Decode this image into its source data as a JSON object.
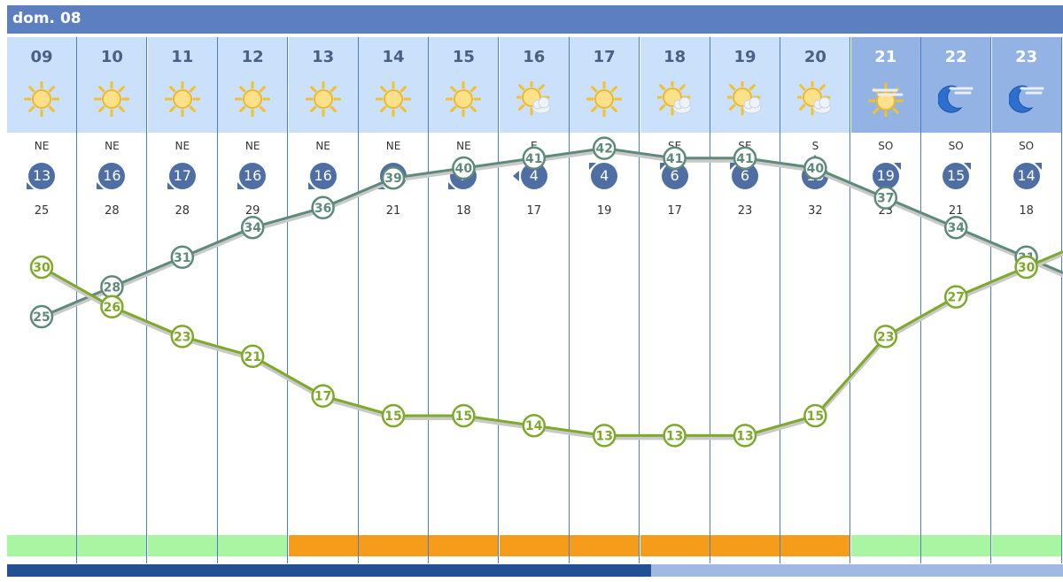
{
  "header": {
    "day_label": "dom. 08"
  },
  "hours": [
    {
      "hour": "09",
      "icon": "sun-icon",
      "night": false,
      "wind_dir": "NE",
      "wind_speed": "13",
      "gust": "25",
      "arrow": "bl",
      "level": "ok"
    },
    {
      "hour": "10",
      "icon": "sun-icon",
      "night": false,
      "wind_dir": "NE",
      "wind_speed": "16",
      "gust": "28",
      "arrow": "bl",
      "level": "ok"
    },
    {
      "hour": "11",
      "icon": "sun-icon",
      "night": false,
      "wind_dir": "NE",
      "wind_speed": "17",
      "gust": "28",
      "arrow": "bl",
      "level": "ok"
    },
    {
      "hour": "12",
      "icon": "sun-icon",
      "night": false,
      "wind_dir": "NE",
      "wind_speed": "16",
      "gust": "29",
      "arrow": "bl",
      "level": "ok"
    },
    {
      "hour": "13",
      "icon": "sun-icon",
      "night": false,
      "wind_dir": "NE",
      "wind_speed": "16",
      "gust": "25",
      "arrow": "bl",
      "level": "warn"
    },
    {
      "hour": "14",
      "icon": "sun-icon",
      "night": false,
      "wind_dir": "NE",
      "wind_speed": "11",
      "gust": "21",
      "arrow": "bl",
      "level": "warn"
    },
    {
      "hour": "15",
      "icon": "sun-icon",
      "night": false,
      "wind_dir": "NE",
      "wind_speed": "7",
      "gust": "18",
      "arrow": "bl",
      "level": "warn"
    },
    {
      "hour": "16",
      "icon": "sun-cloud-icon",
      "night": false,
      "wind_dir": "E",
      "wind_speed": "4",
      "gust": "17",
      "arrow": "l",
      "level": "warn"
    },
    {
      "hour": "17",
      "icon": "sun-icon",
      "night": false,
      "wind_dir": "SE",
      "wind_speed": "4",
      "gust": "19",
      "arrow": "tl",
      "level": "warn"
    },
    {
      "hour": "18",
      "icon": "sun-cloud-icon",
      "night": false,
      "wind_dir": "SE",
      "wind_speed": "6",
      "gust": "17",
      "arrow": "tl",
      "level": "warn"
    },
    {
      "hour": "19",
      "icon": "sun-cloud-icon",
      "night": false,
      "wind_dir": "SE",
      "wind_speed": "6",
      "gust": "23",
      "arrow": "tl",
      "level": "warn"
    },
    {
      "hour": "20",
      "icon": "sun-cloud-icon",
      "night": false,
      "wind_dir": "S",
      "wind_speed": "13",
      "gust": "32",
      "arrow": "t",
      "level": "warn"
    },
    {
      "hour": "21",
      "icon": "sun-haze-icon",
      "night": true,
      "wind_dir": "SO",
      "wind_speed": "19",
      "gust": "23",
      "arrow": "tr",
      "level": "ok"
    },
    {
      "hour": "22",
      "icon": "moon-cloud-icon",
      "night": true,
      "wind_dir": "SO",
      "wind_speed": "15",
      "gust": "21",
      "arrow": "tr",
      "level": "ok"
    },
    {
      "hour": "23",
      "icon": "moon-cloud-icon",
      "night": true,
      "wind_dir": "SO",
      "wind_speed": "14",
      "gust": "18",
      "arrow": "tr",
      "level": "ok"
    }
  ],
  "chart_data": {
    "type": "line",
    "categories": [
      "09",
      "10",
      "11",
      "12",
      "13",
      "14",
      "15",
      "16",
      "17",
      "18",
      "19",
      "20",
      "21",
      "22",
      "23"
    ],
    "series": [
      {
        "values": [
          25,
          28,
          31,
          34,
          36,
          39,
          40,
          41,
          42,
          41,
          41,
          40,
          37,
          34,
          31
        ]
      },
      {
        "values": [
          30,
          26,
          23,
          21,
          17,
          15,
          15,
          14,
          13,
          13,
          13,
          15,
          23,
          27,
          30
        ]
      }
    ],
    "ylim": [
      0,
      52
    ]
  },
  "colors": {
    "series_top": "#5e8a7a",
    "series_bottom": "#7ea92a",
    "level_ok": "#a8f5a2",
    "level_warn": "#f59d1b",
    "wind_badge": "#4e6ea4"
  },
  "progress": {
    "fraction": 0.61
  }
}
